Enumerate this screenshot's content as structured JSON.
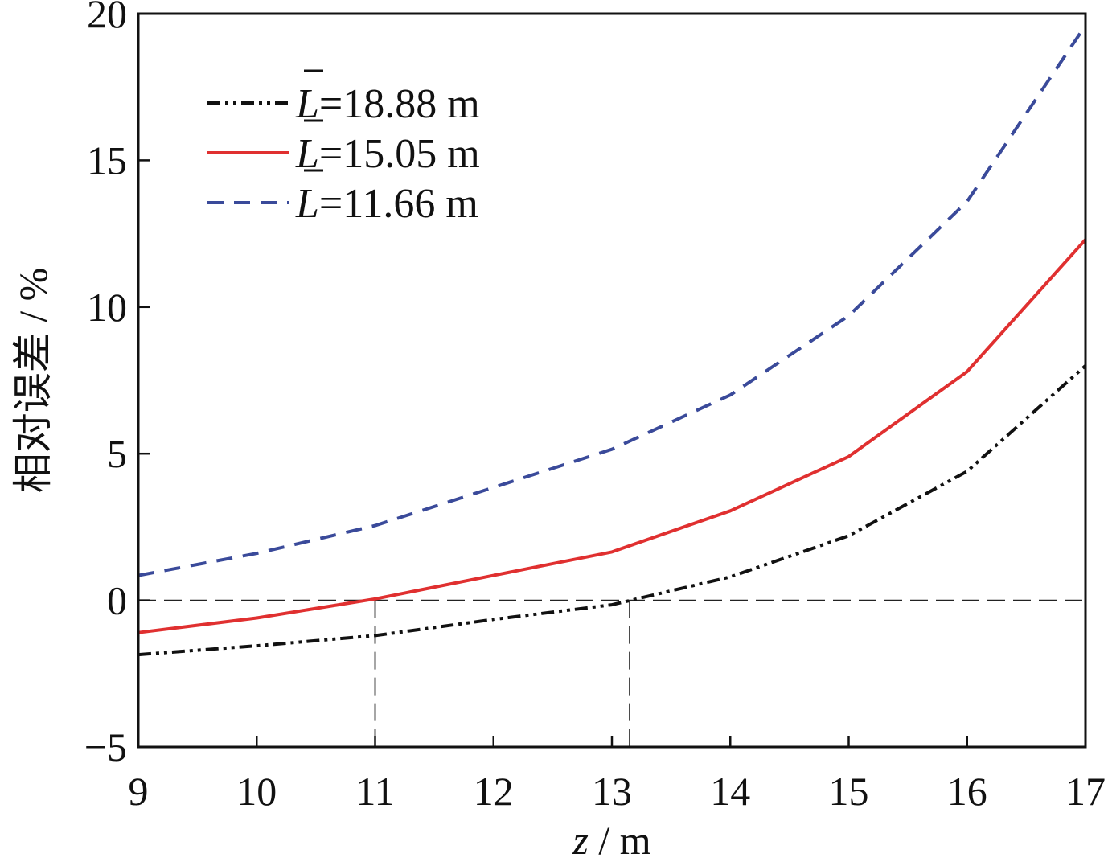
{
  "chart_data": {
    "type": "line",
    "title": "",
    "xlabel_var": "z",
    "xlabel_unit": " / m",
    "ylabel": "相对误差 / %",
    "xlim": [
      9,
      17
    ],
    "ylim": [
      -5,
      20
    ],
    "xticks": [
      9,
      10,
      11,
      12,
      13,
      14,
      15,
      16,
      17
    ],
    "yticks": [
      -5,
      0,
      5,
      10,
      15,
      20
    ],
    "ytick_labels": [
      "−5",
      "0",
      "5",
      "10",
      "15",
      "20"
    ],
    "grid": false,
    "legend_position": "top-left",
    "reference_lines": {
      "horizontal_y": 0,
      "vertical_x": [
        11,
        13.15
      ]
    },
    "series": [
      {
        "name": "=18.88 m",
        "legend_var": "L",
        "legend_value": "=18.88 m",
        "color": "#111111",
        "dash": "dashdot",
        "x": [
          9,
          10,
          11,
          12,
          13,
          14,
          15,
          16,
          17
        ],
        "y": [
          -1.85,
          -1.55,
          -1.2,
          -0.65,
          -0.15,
          0.8,
          2.2,
          4.4,
          8.0
        ]
      },
      {
        "name": "=15.05 m",
        "legend_var": "L",
        "legend_value": "=15.05 m",
        "color": "#e03030",
        "dash": "solid",
        "x": [
          9,
          10,
          11,
          12,
          13,
          14,
          15,
          16,
          17
        ],
        "y": [
          -1.1,
          -0.6,
          0.05,
          0.85,
          1.65,
          3.05,
          4.9,
          7.8,
          12.3
        ]
      },
      {
        "name": "=11.66 m",
        "legend_var": "L",
        "legend_value": "=11.66 m",
        "color": "#3a4a9a",
        "dash": "dashed",
        "x": [
          9,
          10,
          11,
          12,
          13,
          14,
          15,
          16,
          17
        ],
        "y": [
          0.85,
          1.6,
          2.55,
          3.85,
          5.15,
          7.0,
          9.7,
          13.6,
          19.6
        ]
      }
    ]
  }
}
